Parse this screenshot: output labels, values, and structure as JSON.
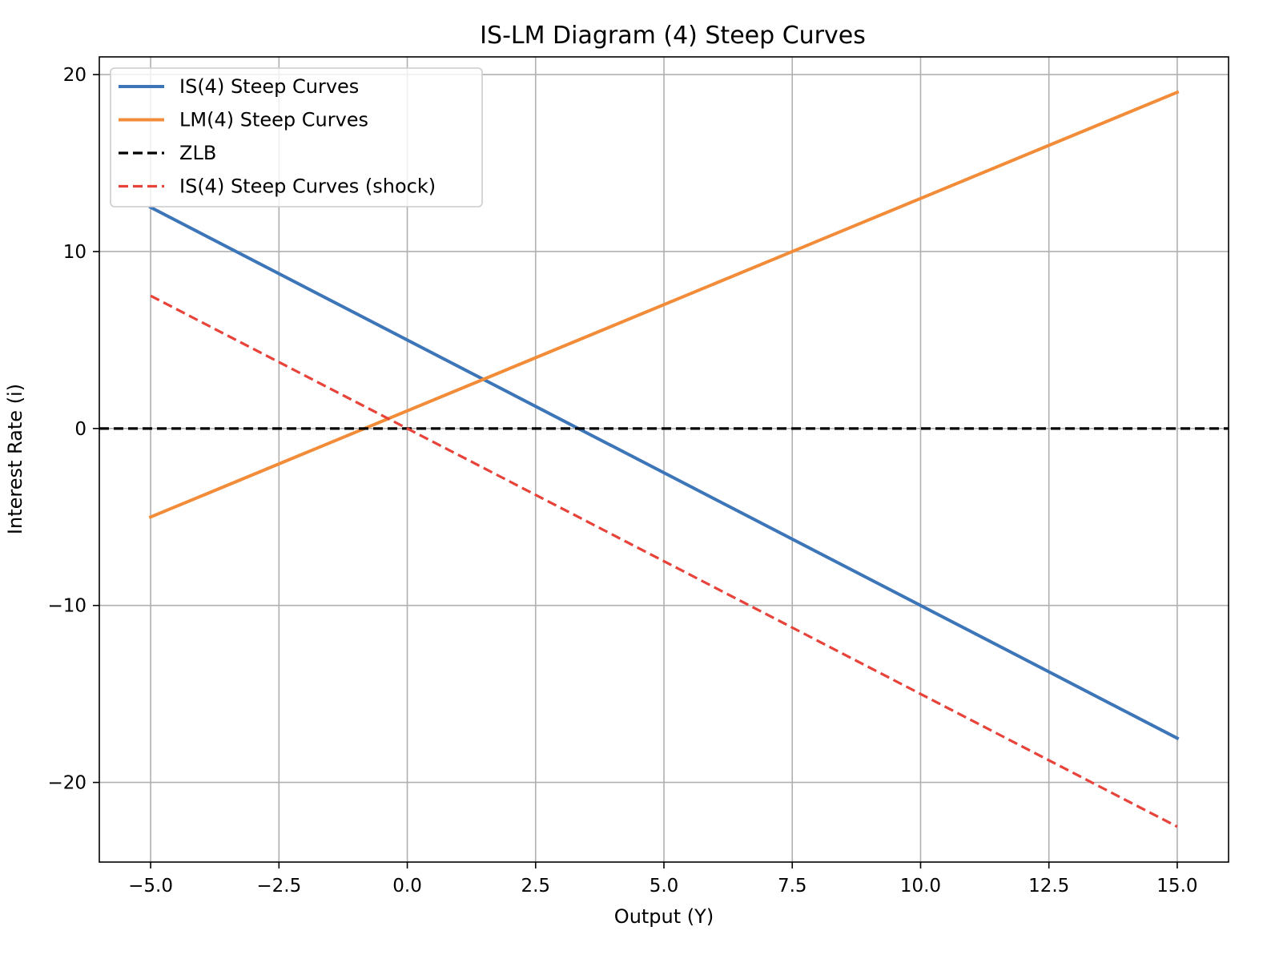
{
  "chart_data": {
    "type": "line",
    "title": "IS-LM Diagram (4) Steep Curves",
    "xlabel": "Output (Y)",
    "ylabel": "Interest Rate (i)",
    "xlim": [
      -6.0,
      16.0
    ],
    "ylim": [
      -24.5,
      21.0
    ],
    "xticks": [
      -5.0,
      -2.5,
      0.0,
      2.5,
      5.0,
      7.5,
      10.0,
      12.5,
      15.0
    ],
    "xtick_labels": [
      "−5.0",
      "−2.5",
      "0.0",
      "2.5",
      "5.0",
      "7.5",
      "10.0",
      "12.5",
      "15.0"
    ],
    "yticks": [
      -20,
      -10,
      0,
      10,
      20
    ],
    "ytick_labels": [
      "−20",
      "−10",
      "0",
      "10",
      "20"
    ],
    "grid": true,
    "legend_position": "top-left",
    "series": [
      {
        "name": "IS(4) Steep Curves",
        "color": "#3d76b8",
        "style": "solid",
        "x": [
          -5,
          15
        ],
        "y": [
          12.5,
          -17.5
        ]
      },
      {
        "name": "LM(4) Steep Curves",
        "color": "#f28c38",
        "style": "solid",
        "x": [
          -5,
          15
        ],
        "y": [
          -5,
          19
        ]
      },
      {
        "name": "ZLB",
        "color": "#000000",
        "style": "dashed",
        "x": [
          -6,
          16
        ],
        "y": [
          0,
          0
        ]
      },
      {
        "name": "IS(4) Steep Curves (shock)",
        "color": "#e8433a",
        "style": "dashed",
        "x": [
          -5,
          15
        ],
        "y": [
          7.5,
          -22.5
        ]
      }
    ]
  }
}
